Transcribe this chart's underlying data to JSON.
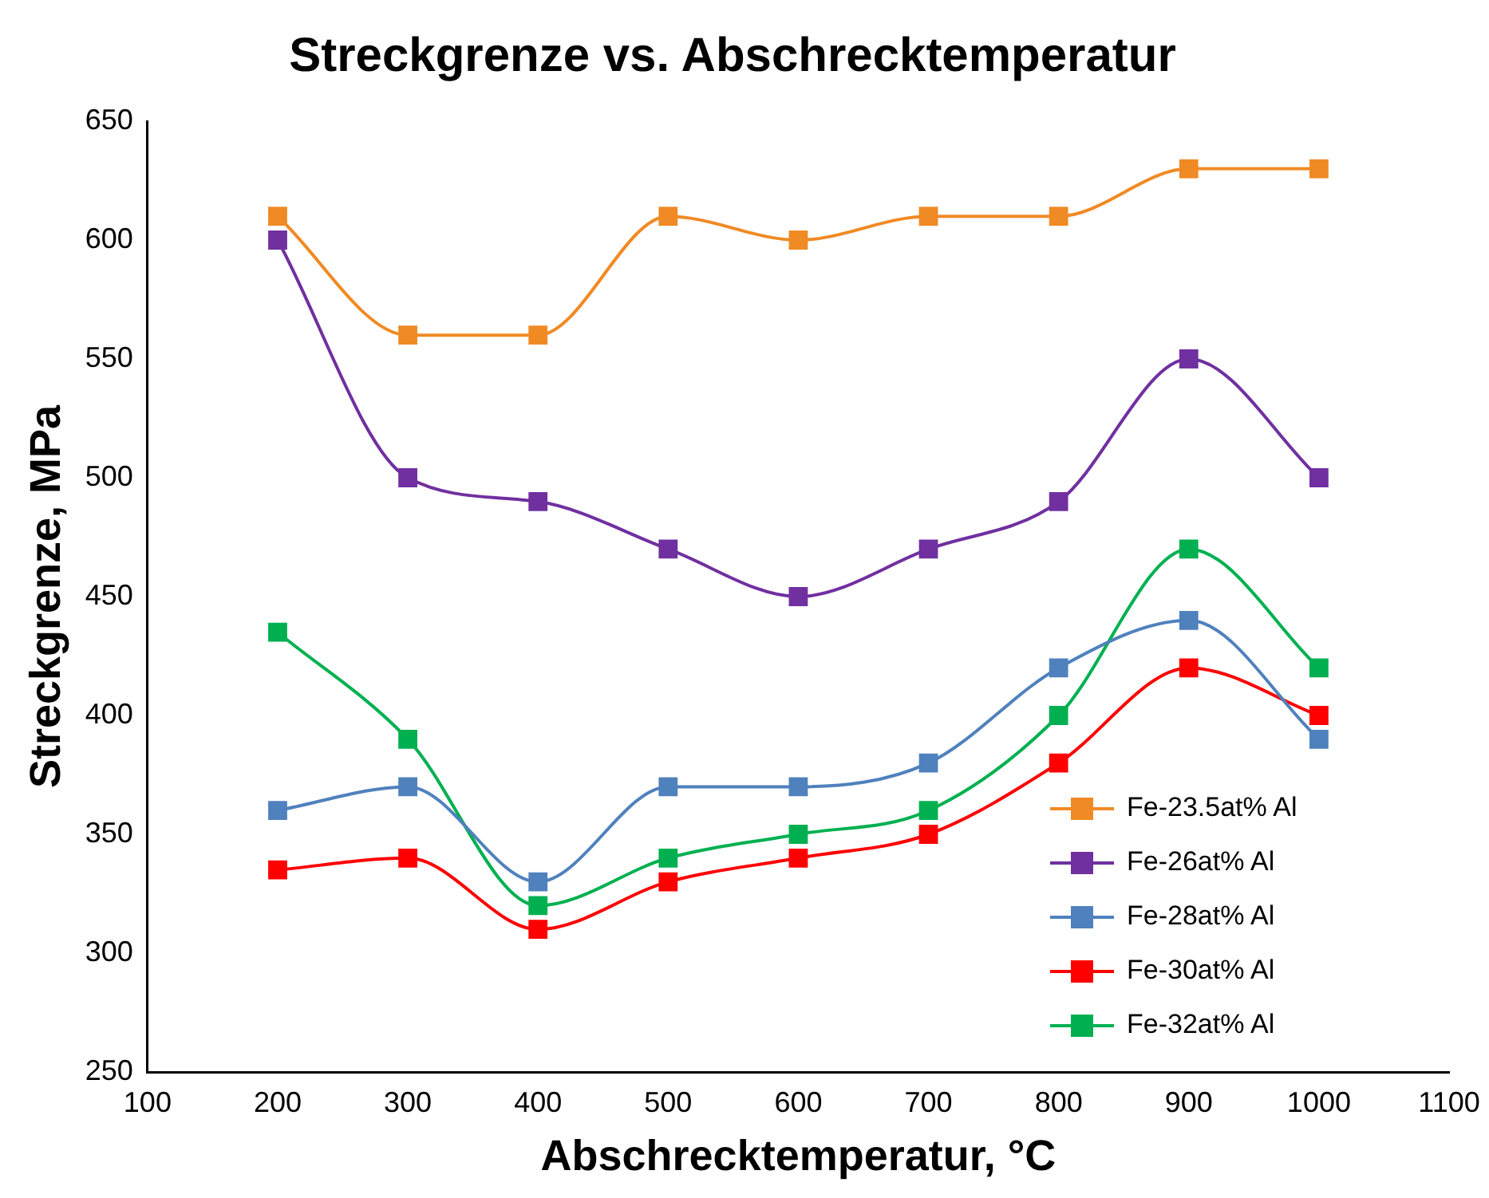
{
  "chart_data": {
    "type": "line",
    "title": "Streckgrenze vs. Abschrecktemperatur",
    "xlabel": "Abschrecktemperatur, °C",
    "ylabel": "Streckgrenze, MPa",
    "x": [
      200,
      300,
      400,
      500,
      600,
      700,
      800,
      900,
      1000
    ],
    "xlim": [
      100,
      1100
    ],
    "xticks": [
      100,
      200,
      300,
      400,
      500,
      600,
      700,
      800,
      900,
      1000,
      1100
    ],
    "ylim": [
      250,
      650
    ],
    "yticks": [
      250,
      300,
      350,
      400,
      450,
      500,
      550,
      600,
      650
    ],
    "grid": false,
    "legend": "bottom right",
    "marker": "square",
    "line_style": "solid",
    "series": [
      {
        "name": "Fe-23.5at% Al",
        "color": "#f08a24",
        "values": [
          610,
          560,
          560,
          610,
          600,
          610,
          610,
          630,
          630
        ]
      },
      {
        "name": "Fe-26at% Al",
        "color": "#7030a0",
        "values": [
          600,
          500,
          490,
          470,
          450,
          470,
          490,
          550,
          500
        ]
      },
      {
        "name": "Fe-28at% Al",
        "color": "#4f81bd",
        "values": [
          360,
          370,
          330,
          370,
          370,
          380,
          420,
          440,
          390
        ]
      },
      {
        "name": "Fe-30at% Al",
        "color": "#ff0000",
        "values": [
          335,
          340,
          310,
          330,
          340,
          350,
          380,
          420,
          400
        ]
      },
      {
        "name": "Fe-32at% Al",
        "color": "#00b050",
        "values": [
          435,
          390,
          320,
          340,
          350,
          360,
          400,
          470,
          420
        ]
      }
    ]
  }
}
